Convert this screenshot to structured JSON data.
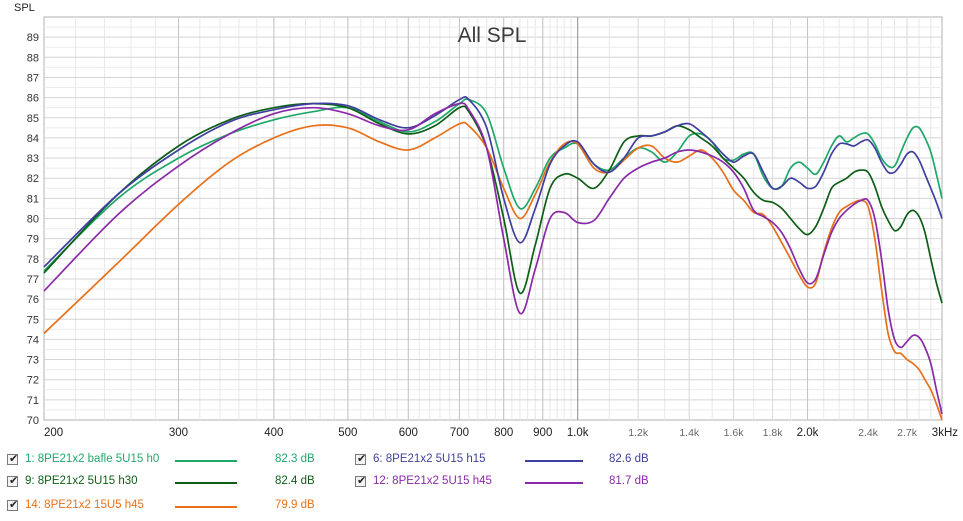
{
  "chart_data": {
    "type": "line",
    "title": "All SPL",
    "ylabel": "SPL",
    "xlabel": "",
    "x_unit": "Hz",
    "x_scale": "log",
    "xlim": [
      200,
      3000
    ],
    "ylim": [
      70,
      90
    ],
    "grid": true,
    "x_ticks": [
      {
        "v": 200,
        "label": "200",
        "major": true
      },
      {
        "v": 300,
        "label": "300",
        "major": true
      },
      {
        "v": 400,
        "label": "400",
        "major": true
      },
      {
        "v": 500,
        "label": "500",
        "major": true
      },
      {
        "v": 600,
        "label": "600",
        "major": true
      },
      {
        "v": 700,
        "label": "700",
        "major": true
      },
      {
        "v": 800,
        "label": "800",
        "major": true
      },
      {
        "v": 900,
        "label": "900",
        "major": true
      },
      {
        "v": 1000,
        "label": "1.0k",
        "major": true
      },
      {
        "v": 1200,
        "label": "1.2k",
        "major": false
      },
      {
        "v": 1400,
        "label": "1.4k",
        "major": false
      },
      {
        "v": 1600,
        "label": "1.6k",
        "major": false
      },
      {
        "v": 1800,
        "label": "1.8k",
        "major": false
      },
      {
        "v": 2000,
        "label": "2.0k",
        "major": true
      },
      {
        "v": 2400,
        "label": "2.4k",
        "major": false
      },
      {
        "v": 2700,
        "label": "2.7k",
        "major": false
      },
      {
        "v": 3000,
        "label": "3kHz",
        "major": true
      }
    ],
    "y_ticks": [
      70,
      71,
      72,
      73,
      74,
      75,
      76,
      77,
      78,
      79,
      80,
      81,
      82,
      83,
      84,
      85,
      86,
      87,
      88,
      89
    ],
    "series": [
      {
        "id": "s1",
        "name": "1: 8PE21x2 bafle 5U15 h0",
        "color": "#1fa86a",
        "value": "82.3 dB",
        "x": [
          200,
          250,
          300,
          350,
          400,
          450,
          500,
          550,
          600,
          650,
          700,
          720,
          760,
          800,
          840,
          880,
          920,
          960,
          1000,
          1050,
          1100,
          1150,
          1200,
          1250,
          1300,
          1350,
          1400,
          1450,
          1500,
          1550,
          1600,
          1650,
          1700,
          1750,
          1800,
          1850,
          1900,
          1950,
          2000,
          2050,
          2100,
          2150,
          2200,
          2250,
          2300,
          2350,
          2400,
          2450,
          2500,
          2550,
          2600,
          2650,
          2700,
          2750,
          2800,
          2850,
          2900,
          2950,
          3000
        ],
        "y": [
          77.4,
          81.0,
          83.0,
          84.2,
          84.9,
          85.3,
          85.5,
          84.8,
          84.3,
          84.8,
          85.7,
          85.9,
          85.2,
          82.5,
          80.5,
          81.5,
          83.0,
          83.5,
          83.7,
          82.7,
          82.4,
          83.0,
          83.5,
          83.3,
          82.8,
          83.3,
          84.1,
          84.2,
          83.8,
          83.0,
          82.9,
          83.2,
          83.2,
          82.1,
          81.5,
          81.6,
          82.5,
          82.8,
          82.5,
          82.2,
          82.8,
          83.6,
          84.1,
          83.8,
          84.0,
          84.2,
          84.2,
          83.7,
          83.0,
          82.6,
          82.6,
          83.3,
          84.0,
          84.5,
          84.5,
          84.0,
          83.3,
          82.2,
          81.0
        ]
      },
      {
        "id": "s9",
        "name": "9: 8PE21x2 5U15 h30",
        "color": "#0d5e16",
        "value": "82.4 dB",
        "x": [
          200,
          250,
          300,
          350,
          400,
          450,
          500,
          550,
          600,
          650,
          700,
          720,
          760,
          800,
          840,
          880,
          920,
          960,
          1000,
          1050,
          1100,
          1150,
          1200,
          1250,
          1300,
          1350,
          1400,
          1450,
          1500,
          1550,
          1600,
          1650,
          1700,
          1750,
          1800,
          1850,
          1900,
          1950,
          2000,
          2050,
          2100,
          2150,
          2200,
          2250,
          2300,
          2350,
          2400,
          2450,
          2500,
          2550,
          2600,
          2650,
          2700,
          2750,
          2800,
          2850,
          2900,
          2950,
          3000
        ],
        "y": [
          77.3,
          81.2,
          83.6,
          84.9,
          85.5,
          85.7,
          85.5,
          84.7,
          84.2,
          84.6,
          85.5,
          85.3,
          83.5,
          80.0,
          76.3,
          78.7,
          81.5,
          82.2,
          82.0,
          81.5,
          82.4,
          83.8,
          84.1,
          84.1,
          84.3,
          84.6,
          84.4,
          84.0,
          83.6,
          83.0,
          82.5,
          82.0,
          81.3,
          80.9,
          80.8,
          80.5,
          80.0,
          79.5,
          79.2,
          79.6,
          80.5,
          81.5,
          81.8,
          82.0,
          82.3,
          82.4,
          82.3,
          81.6,
          80.6,
          79.9,
          79.4,
          79.6,
          80.2,
          80.4,
          80.1,
          79.3,
          78.0,
          76.8,
          75.8
        ]
      },
      {
        "id": "s14",
        "name": "14: 8PE21x2 15U5 h45",
        "color": "#e8701a",
        "value": "79.9 dB",
        "x": [
          200,
          250,
          300,
          350,
          400,
          450,
          500,
          550,
          600,
          650,
          700,
          720,
          760,
          800,
          840,
          880,
          920,
          960,
          1000,
          1050,
          1100,
          1150,
          1200,
          1250,
          1300,
          1350,
          1400,
          1450,
          1500,
          1550,
          1600,
          1650,
          1700,
          1750,
          1800,
          1850,
          1900,
          1950,
          2000,
          2050,
          2100,
          2150,
          2200,
          2250,
          2300,
          2350,
          2400,
          2450,
          2500,
          2550,
          2600,
          2650,
          2700,
          2750,
          2800,
          2850,
          2900,
          2950,
          3000
        ],
        "y": [
          74.3,
          77.8,
          80.7,
          82.8,
          84.0,
          84.6,
          84.5,
          83.8,
          83.4,
          84.0,
          84.7,
          84.6,
          83.5,
          81.5,
          80.0,
          81.2,
          82.8,
          83.7,
          83.7,
          82.5,
          82.3,
          82.9,
          83.5,
          83.6,
          83.0,
          82.8,
          83.1,
          83.4,
          83.0,
          82.3,
          81.4,
          80.9,
          80.3,
          80.2,
          79.6,
          78.8,
          78.0,
          77.2,
          76.6,
          76.8,
          78.3,
          79.5,
          80.3,
          80.6,
          80.8,
          80.9,
          80.6,
          79.0,
          76.5,
          74.3,
          73.4,
          73.3,
          73.0,
          72.8,
          72.5,
          72.0,
          71.5,
          70.8,
          70.0
        ]
      },
      {
        "id": "s6",
        "name": "6: 8PE21x2 5U15 h15",
        "color": "#3f3f9f",
        "value": "82.6 dB",
        "x": [
          200,
          250,
          300,
          350,
          400,
          450,
          500,
          550,
          600,
          650,
          700,
          720,
          760,
          800,
          840,
          880,
          920,
          960,
          1000,
          1050,
          1100,
          1150,
          1200,
          1250,
          1300,
          1350,
          1400,
          1450,
          1500,
          1550,
          1600,
          1650,
          1700,
          1750,
          1800,
          1850,
          1900,
          1950,
          2000,
          2050,
          2100,
          2150,
          2200,
          2250,
          2300,
          2350,
          2400,
          2450,
          2500,
          2550,
          2600,
          2650,
          2700,
          2750,
          2800,
          2850,
          2900,
          2950,
          3000
        ],
        "y": [
          77.6,
          81.2,
          83.4,
          84.8,
          85.4,
          85.7,
          85.6,
          84.9,
          84.5,
          85.1,
          85.9,
          85.9,
          84.5,
          81.0,
          78.8,
          80.5,
          82.7,
          83.6,
          83.8,
          82.7,
          82.3,
          83.0,
          84.0,
          84.1,
          84.3,
          84.6,
          84.7,
          84.3,
          83.8,
          83.2,
          82.8,
          83.1,
          83.2,
          82.3,
          81.5,
          81.6,
          82.0,
          81.8,
          81.5,
          81.6,
          82.3,
          83.2,
          83.7,
          83.7,
          83.6,
          83.8,
          83.9,
          83.5,
          82.8,
          82.3,
          82.3,
          82.7,
          83.2,
          83.3,
          82.9,
          82.2,
          81.5,
          80.8,
          80.0
        ]
      },
      {
        "id": "s12",
        "name": "12: 8PE21x2 5U15 h45",
        "color": "#8a2aa8",
        "value": "81.7 dB",
        "x": [
          200,
          250,
          300,
          350,
          400,
          450,
          500,
          550,
          600,
          650,
          700,
          720,
          760,
          800,
          840,
          880,
          920,
          960,
          1000,
          1050,
          1100,
          1150,
          1200,
          1250,
          1300,
          1350,
          1400,
          1450,
          1500,
          1550,
          1600,
          1650,
          1700,
          1750,
          1800,
          1850,
          1900,
          1950,
          2000,
          2050,
          2100,
          2150,
          2200,
          2250,
          2300,
          2350,
          2400,
          2450,
          2500,
          2550,
          2600,
          2650,
          2700,
          2750,
          2800,
          2850,
          2900,
          2950,
          3000
        ],
        "y": [
          76.4,
          80.2,
          82.6,
          84.2,
          85.2,
          85.5,
          85.2,
          84.6,
          84.4,
          85.2,
          85.7,
          85.4,
          83.5,
          79.0,
          75.3,
          77.5,
          80.0,
          80.3,
          79.8,
          79.9,
          81.0,
          82.0,
          82.5,
          82.8,
          83.0,
          83.3,
          83.4,
          83.3,
          83.1,
          82.8,
          82.3,
          81.5,
          80.4,
          80.1,
          79.8,
          79.3,
          78.5,
          77.5,
          76.8,
          77.0,
          78.2,
          79.3,
          80.0,
          80.4,
          80.7,
          80.9,
          80.9,
          80.0,
          78.0,
          75.5,
          74.0,
          73.6,
          73.9,
          74.2,
          74.1,
          73.6,
          72.8,
          71.5,
          70.3
        ]
      }
    ]
  },
  "legend": [
    {
      "label": "1: 8PE21x2 bafle 5U15 h0",
      "value": "82.3 dB",
      "color": "#1fa86a",
      "checked": true
    },
    {
      "label": "6: 8PE21x2 5U15 h15",
      "value": "82.6 dB",
      "color": "#3f3f9f",
      "checked": true
    },
    {
      "label": "9: 8PE21x2 5U15 h30",
      "value": "82.4 dB",
      "color": "#0d5e16",
      "checked": true
    },
    {
      "label": "12: 8PE21x2 5U15 h45",
      "value": "81.7 dB",
      "color": "#8a2aa8",
      "checked": true
    },
    {
      "label": "14: 8PE21x2 15U5 h45",
      "value": "79.9 dB",
      "color": "#e8701a",
      "checked": true
    }
  ]
}
